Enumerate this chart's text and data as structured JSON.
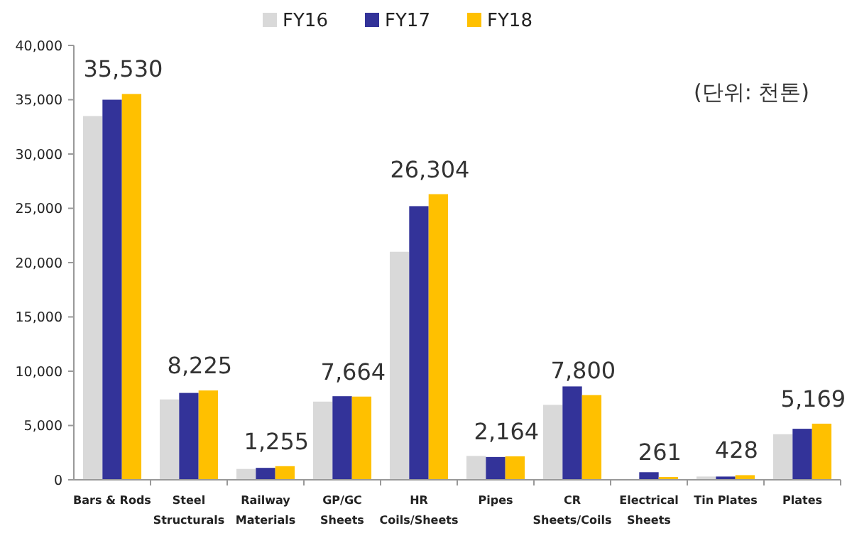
{
  "chart_data": {
    "type": "bar",
    "categories": [
      "Bars & Rods",
      "Steel Structurals",
      "Railway Materials",
      "GP/GC Sheets",
      "HR Coils/Sheets",
      "Pipes",
      "CR Sheets/Coils",
      "Electrical Sheets",
      "Tin Plates",
      "Plates"
    ],
    "series": [
      {
        "name": "FY16",
        "color": "#d9d9d9",
        "values": [
          33500,
          7400,
          1000,
          7200,
          21000,
          2200,
          6900,
          null,
          300,
          4200
        ]
      },
      {
        "name": "FY17",
        "color": "#333399",
        "values": [
          35000,
          8000,
          1100,
          7700,
          25200,
          2100,
          8600,
          700,
          300,
          4700
        ]
      },
      {
        "name": "FY18",
        "color": "#ffc000",
        "values": [
          35530,
          8225,
          1255,
          7664,
          26304,
          2164,
          7800,
          261,
          428,
          5169
        ],
        "value_labels": [
          "35,530",
          "8,225",
          "1,255",
          "7,664",
          "26,304",
          "2,164",
          "7,800",
          "261",
          "428",
          "5,169"
        ]
      }
    ],
    "ylim": [
      0,
      40000
    ],
    "yticks": [
      {
        "value": 0,
        "label": "0"
      },
      {
        "value": 5000,
        "label": "5,000"
      },
      {
        "value": 10000,
        "label": "10,000"
      },
      {
        "value": 15000,
        "label": "15,000"
      },
      {
        "value": 20000,
        "label": "20,000"
      },
      {
        "value": 25000,
        "label": "25,000"
      },
      {
        "value": 30000,
        "label": "30,000"
      },
      {
        "value": 35000,
        "label": "35,000"
      },
      {
        "value": 40000,
        "label": "40,000"
      }
    ],
    "grid": false,
    "legend": "top",
    "annotations": [
      "(단위: 천톤)"
    ]
  }
}
